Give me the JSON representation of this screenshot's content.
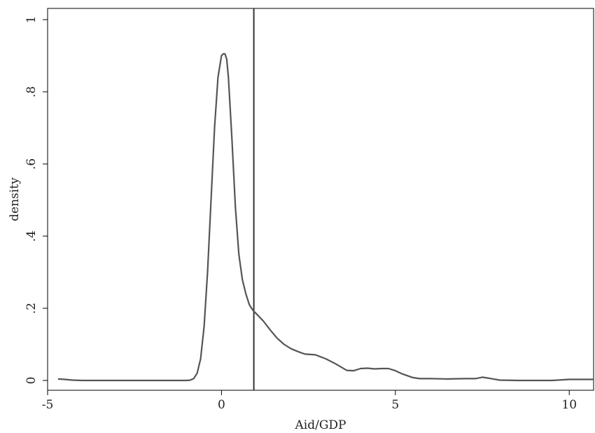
{
  "chart_data": {
    "type": "line",
    "title": "",
    "xlabel": "Aid/GDP",
    "ylabel": "density",
    "xlim": [
      -5,
      10.7
    ],
    "ylim": [
      0,
      1
    ],
    "x_ticks": [
      {
        "value": -5,
        "label": "-5"
      },
      {
        "value": 0,
        "label": "0"
      },
      {
        "value": 5,
        "label": "5"
      },
      {
        "value": 10,
        "label": "10"
      }
    ],
    "y_ticks": [
      {
        "value": 0,
        "label": "0"
      },
      {
        "value": 0.2,
        "label": ".2"
      },
      {
        "value": 0.4,
        "label": ".4"
      },
      {
        "value": 0.6,
        "label": ".6"
      },
      {
        "value": 0.8,
        "label": ".8"
      },
      {
        "value": 1,
        "label": "1"
      }
    ],
    "grid": false,
    "reference_line": {
      "x": 0.93
    },
    "series": [
      {
        "color": "#555555",
        "points": [
          [
            -4.7,
            0.004
          ],
          [
            -4.5,
            0.003
          ],
          [
            -4.3,
            0.001
          ],
          [
            -4.0,
            0.0
          ],
          [
            -3.0,
            0.0
          ],
          [
            -2.0,
            0.0
          ],
          [
            -1.0,
            0.0
          ],
          [
            -0.9,
            0.001
          ],
          [
            -0.8,
            0.005
          ],
          [
            -0.7,
            0.02
          ],
          [
            -0.6,
            0.06
          ],
          [
            -0.5,
            0.15
          ],
          [
            -0.4,
            0.3
          ],
          [
            -0.3,
            0.5
          ],
          [
            -0.2,
            0.7
          ],
          [
            -0.1,
            0.84
          ],
          [
            0.0,
            0.9
          ],
          [
            0.05,
            0.905
          ],
          [
            0.1,
            0.905
          ],
          [
            0.15,
            0.89
          ],
          [
            0.2,
            0.84
          ],
          [
            0.3,
            0.67
          ],
          [
            0.4,
            0.48
          ],
          [
            0.5,
            0.35
          ],
          [
            0.6,
            0.28
          ],
          [
            0.7,
            0.24
          ],
          [
            0.8,
            0.21
          ],
          [
            0.9,
            0.195
          ],
          [
            1.0,
            0.185
          ],
          [
            1.2,
            0.165
          ],
          [
            1.4,
            0.14
          ],
          [
            1.6,
            0.117
          ],
          [
            1.8,
            0.1
          ],
          [
            2.0,
            0.088
          ],
          [
            2.2,
            0.08
          ],
          [
            2.4,
            0.073
          ],
          [
            2.7,
            0.071
          ],
          [
            3.0,
            0.06
          ],
          [
            3.3,
            0.045
          ],
          [
            3.6,
            0.028
          ],
          [
            3.8,
            0.027
          ],
          [
            4.0,
            0.033
          ],
          [
            4.2,
            0.034
          ],
          [
            4.4,
            0.032
          ],
          [
            4.6,
            0.033
          ],
          [
            4.8,
            0.033
          ],
          [
            5.0,
            0.027
          ],
          [
            5.2,
            0.018
          ],
          [
            5.5,
            0.008
          ],
          [
            5.7,
            0.005
          ],
          [
            6.0,
            0.005
          ],
          [
            6.5,
            0.004
          ],
          [
            7.0,
            0.005
          ],
          [
            7.3,
            0.005
          ],
          [
            7.5,
            0.009
          ],
          [
            7.7,
            0.006
          ],
          [
            8.0,
            0.001
          ],
          [
            8.5,
            0.0
          ],
          [
            9.0,
            0.0
          ],
          [
            9.5,
            0.0
          ],
          [
            10.0,
            0.003
          ],
          [
            10.7,
            0.003
          ]
        ]
      }
    ]
  }
}
